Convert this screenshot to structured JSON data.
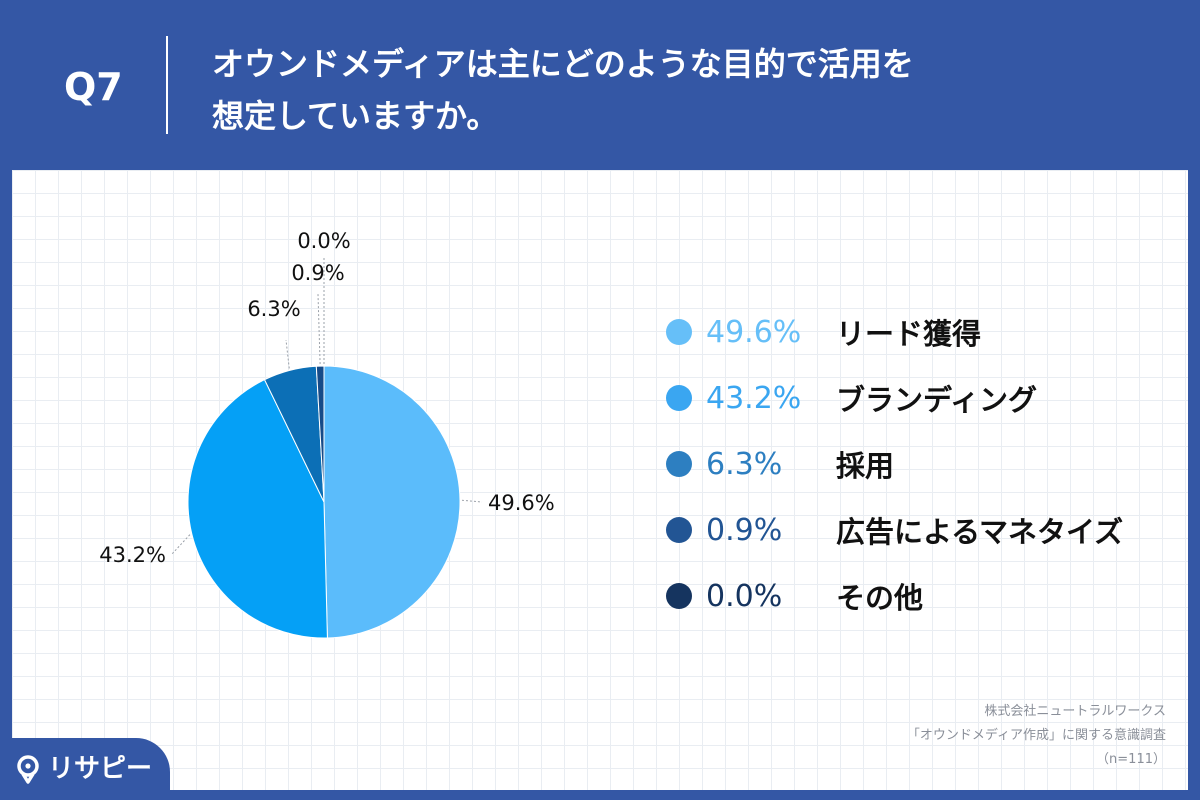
{
  "header": {
    "question_number": "Q7",
    "question_line1": "オウンドメディアは主にどのような目的で活用を",
    "question_line2": "想定していますか。"
  },
  "chart_data": {
    "type": "pie",
    "categories": [
      "リード獲得",
      "ブランディング",
      "採用",
      "広告によるマネタイズ",
      "その他"
    ],
    "values": [
      49.6,
      43.2,
      6.3,
      0.9,
      0.0
    ],
    "value_labels": [
      "49.6%",
      "43.2%",
      "6.3%",
      "0.9%",
      "0.0%"
    ],
    "colors": [
      "#5bbcfb",
      "#05a0f6",
      "#0c6fb6",
      "#164b88",
      "#0e2f5c"
    ],
    "legend_placement": "right"
  },
  "legend_colors": [
    "#66bff8",
    "#3aa6f1",
    "#2d7fc1",
    "#225594",
    "#15345f"
  ],
  "source": {
    "line1": "株式会社ニュートラルワークス",
    "line2": "「オウンドメディア作成」に関する意識調査",
    "line3": "（n=111）"
  },
  "brand": {
    "logo_text": "リサピー"
  }
}
